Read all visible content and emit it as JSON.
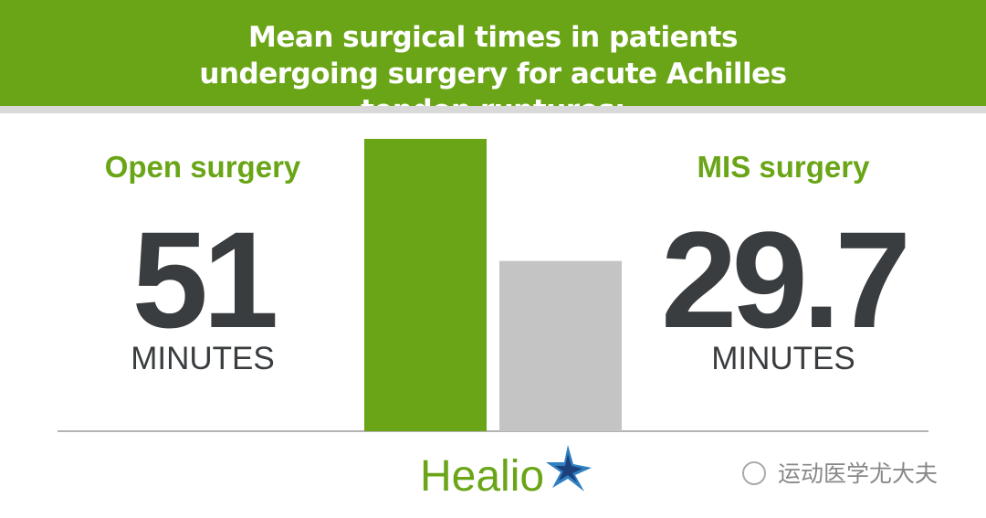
{
  "chart_data": {
    "type": "bar",
    "title": "Mean surgical times in patients undergoing surgery for acute Achilles tendon ruptures:",
    "categories": [
      "Open surgery",
      "MIS surgery"
    ],
    "values": [
      51,
      29.7
    ],
    "unit": "MINUTES",
    "colors": [
      "#6aa517",
      "#c4c4c4"
    ]
  },
  "logo": "Healio",
  "watermark": "运动医学尤大夫"
}
